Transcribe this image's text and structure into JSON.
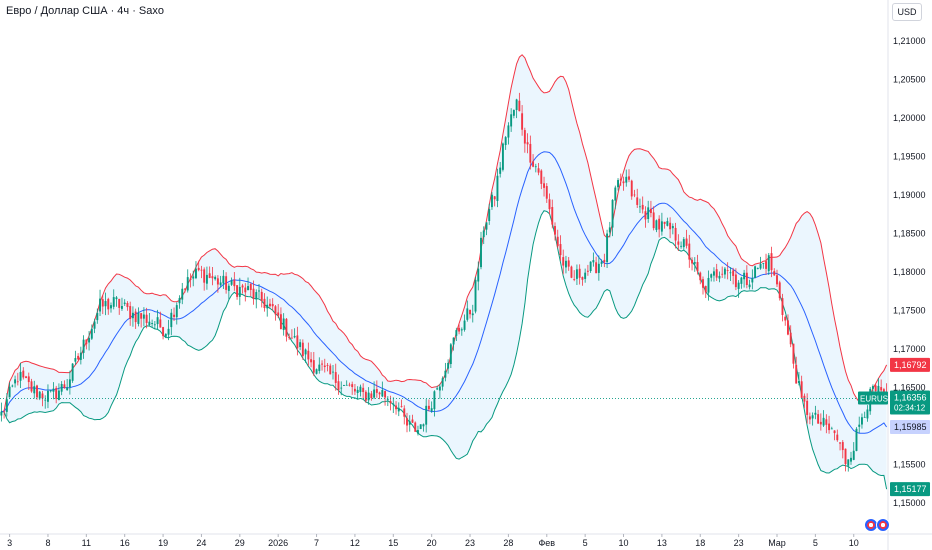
{
  "header": {
    "title": "Евро / Доллар США · 4ч · Saxo",
    "currency_button": "USD"
  },
  "colors": {
    "up": "#089981",
    "down": "#f23645",
    "upper_band": "#f23645",
    "basis": "#2962ff",
    "lower_band": "#089981",
    "band_fill": "#e3f2fd"
  },
  "icons": [
    "eu-flag-icon",
    "us-flag-icon"
  ],
  "price_tags": {
    "symbol": "EURUSD",
    "last_price": "1,16356",
    "countdown": "02:34:12",
    "upper_band": "1,16792",
    "basis": "1,15985",
    "lower_band": "1,15177"
  },
  "chart_data": {
    "type": "candlestick",
    "title": "Евро / Доллар США · 4ч · Saxo",
    "ylim": [
      1.1475,
      1.2125
    ],
    "y_ticks": [
      "1,15000",
      "1,15500",
      "1,16000",
      "1,16500",
      "1,17000",
      "1,17500",
      "1,18000",
      "1,18500",
      "1,19000",
      "1,19500",
      "1,20000",
      "1,20500",
      "1,21000"
    ],
    "y_tick_values": [
      1.15,
      1.155,
      1.16,
      1.165,
      1.17,
      1.175,
      1.18,
      1.185,
      1.19,
      1.195,
      1.2,
      1.205,
      1.21
    ],
    "x_ticks": [
      "3",
      "8",
      "11",
      "16",
      "19",
      "24",
      "29",
      "2026",
      "7",
      "12",
      "15",
      "20",
      "23",
      "28",
      "Фев",
      "5",
      "10",
      "13",
      "18",
      "23",
      "Мар",
      "5",
      "10"
    ],
    "x_tick_bar_index": [
      3,
      17,
      31,
      45,
      59,
      73,
      87,
      101,
      115,
      129,
      143,
      157,
      171,
      185,
      199,
      213,
      227,
      241,
      255,
      269,
      283,
      297,
      311
    ],
    "bar_count": 324,
    "anchors": [
      [
        0,
        1.1615
      ],
      [
        6,
        1.1665
      ],
      [
        12,
        1.1645
      ],
      [
        18,
        1.1638
      ],
      [
        24,
        1.1655
      ],
      [
        30,
        1.1705
      ],
      [
        36,
        1.1755
      ],
      [
        42,
        1.176
      ],
      [
        48,
        1.1745
      ],
      [
        54,
        1.1738
      ],
      [
        60,
        1.1725
      ],
      [
        66,
        1.178
      ],
      [
        72,
        1.18
      ],
      [
        78,
        1.179
      ],
      [
        84,
        1.178
      ],
      [
        90,
        1.1775
      ],
      [
        96,
        1.176
      ],
      [
        102,
        1.1735
      ],
      [
        108,
        1.1705
      ],
      [
        114,
        1.168
      ],
      [
        120,
        1.1665
      ],
      [
        126,
        1.165
      ],
      [
        132,
        1.164
      ],
      [
        138,
        1.1645
      ],
      [
        144,
        1.163
      ],
      [
        148,
        1.16
      ],
      [
        152,
        1.1595
      ],
      [
        156,
        1.1625
      ],
      [
        160,
        1.166
      ],
      [
        166,
        1.172
      ],
      [
        172,
        1.1755
      ],
      [
        176,
        1.186
      ],
      [
        180,
        1.19
      ],
      [
        184,
        1.198
      ],
      [
        188,
        1.202
      ],
      [
        192,
        1.196
      ],
      [
        196,
        1.193
      ],
      [
        200,
        1.188
      ],
      [
        204,
        1.182
      ],
      [
        208,
        1.179
      ],
      [
        212,
        1.18
      ],
      [
        216,
        1.1805
      ],
      [
        220,
        1.182
      ],
      [
        224,
        1.1905
      ],
      [
        228,
        1.192
      ],
      [
        232,
        1.1885
      ],
      [
        236,
        1.1875
      ],
      [
        240,
        1.186
      ],
      [
        244,
        1.1855
      ],
      [
        248,
        1.184
      ],
      [
        252,
        1.1815
      ],
      [
        256,
        1.1775
      ],
      [
        260,
        1.1795
      ],
      [
        264,
        1.181
      ],
      [
        268,
        1.179
      ],
      [
        272,
        1.179
      ],
      [
        276,
        1.1805
      ],
      [
        280,
        1.1815
      ],
      [
        284,
        1.177
      ],
      [
        288,
        1.17
      ],
      [
        292,
        1.163
      ],
      [
        296,
        1.161
      ],
      [
        300,
        1.16
      ],
      [
        304,
        1.159
      ],
      [
        308,
        1.1555
      ],
      [
        311,
        1.1575
      ],
      [
        314,
        1.1615
      ],
      [
        318,
        1.1645
      ],
      [
        323,
        1.1636
      ]
    ],
    "series": [
      {
        "name": "",
        "kind": "candles"
      },
      {
        "name": "",
        "kind": "upper_band"
      },
      {
        "name": "",
        "kind": "basis"
      },
      {
        "name": "",
        "kind": "lower_band"
      }
    ],
    "last_price": 1.16356,
    "upper_last": 1.16792,
    "basis_last": 1.15985,
    "lower_last": 1.15177,
    "legend": "none",
    "grid": false
  }
}
